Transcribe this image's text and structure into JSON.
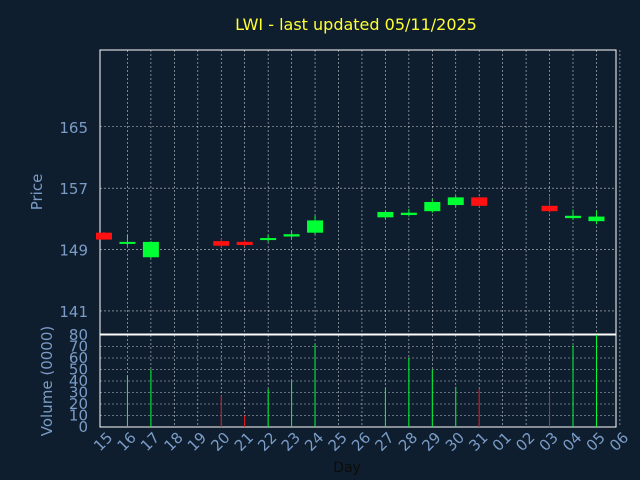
{
  "title": "LWI - last updated 05/11/2025",
  "price_axis_label": "Price",
  "volume_axis_label": "Volume (0000)",
  "x_axis_label": "Day",
  "colors": {
    "up": "#00ff33",
    "down": "#ff1111",
    "background": "#0f1e2e",
    "title": "#ffff33",
    "axis_text": "#7a9cc6"
  },
  "chart_data": [
    {
      "type": "candlestick",
      "ylabel": "Price",
      "ylim": [
        138,
        175
      ],
      "yticks": [
        "141",
        "149",
        "157",
        "165"
      ],
      "xticks": [
        "15",
        "16",
        "17",
        "18",
        "19",
        "20",
        "21",
        "22",
        "23",
        "24",
        "25",
        "26",
        "27",
        "28",
        "29",
        "30",
        "31",
        "01",
        "02",
        "03",
        "04",
        "05",
        "06"
      ],
      "candles": [
        {
          "day": "15",
          "open": 151.2,
          "high": 151.3,
          "low": 150.3,
          "close": 150.3
        },
        {
          "day": "16",
          "open": 149.8,
          "high": 150.9,
          "low": 149.5,
          "close": 150.0
        },
        {
          "day": "17",
          "open": 148.0,
          "high": 150.1,
          "low": 147.9,
          "close": 150.0
        },
        {
          "day": "20",
          "open": 150.1,
          "high": 150.4,
          "low": 149.3,
          "close": 149.5
        },
        {
          "day": "21",
          "open": 150.0,
          "high": 150.2,
          "low": 149.4,
          "close": 149.6
        },
        {
          "day": "22",
          "open": 150.3,
          "high": 150.9,
          "low": 150.0,
          "close": 150.5
        },
        {
          "day": "23",
          "open": 150.7,
          "high": 151.4,
          "low": 150.5,
          "close": 151.0
        },
        {
          "day": "24",
          "open": 151.2,
          "high": 153.4,
          "low": 151.0,
          "close": 152.8
        },
        {
          "day": "27",
          "open": 153.2,
          "high": 154.0,
          "low": 153.0,
          "close": 153.9
        },
        {
          "day": "28",
          "open": 153.5,
          "high": 154.3,
          "low": 153.3,
          "close": 153.8
        },
        {
          "day": "29",
          "open": 154.0,
          "high": 155.6,
          "low": 153.8,
          "close": 155.2
        },
        {
          "day": "30",
          "open": 154.8,
          "high": 156.0,
          "low": 154.6,
          "close": 155.8
        },
        {
          "day": "31",
          "open": 155.8,
          "high": 155.9,
          "low": 154.6,
          "close": 154.7
        },
        {
          "day": "03",
          "open": 154.7,
          "high": 155.9,
          "low": 153.8,
          "close": 154.0
        },
        {
          "day": "04",
          "open": 153.1,
          "high": 154.2,
          "low": 152.9,
          "close": 153.4
        },
        {
          "day": "05",
          "open": 152.7,
          "high": 154.1,
          "low": 152.3,
          "close": 153.3
        }
      ]
    },
    {
      "type": "bar",
      "ylabel": "Volume (0000)",
      "ylim": [
        0,
        80
      ],
      "yticks": [
        "0",
        "10",
        "20",
        "30",
        "40",
        "50",
        "60",
        "70",
        "80"
      ],
      "xlabel": "Day",
      "bars": [
        {
          "day": "16",
          "value": 45,
          "direction": "up"
        },
        {
          "day": "17",
          "value": 50,
          "direction": "up"
        },
        {
          "day": "20",
          "value": 27,
          "direction": "down"
        },
        {
          "day": "21",
          "value": 10,
          "direction": "down"
        },
        {
          "day": "22",
          "value": 33,
          "direction": "up"
        },
        {
          "day": "23",
          "value": 40,
          "direction": "up"
        },
        {
          "day": "24",
          "value": 72,
          "direction": "up"
        },
        {
          "day": "27",
          "value": 34,
          "direction": "up"
        },
        {
          "day": "28",
          "value": 60,
          "direction": "up"
        },
        {
          "day": "29",
          "value": 50,
          "direction": "up"
        },
        {
          "day": "30",
          "value": 35,
          "direction": "up"
        },
        {
          "day": "31",
          "value": 33,
          "direction": "down"
        },
        {
          "day": "03",
          "value": 30,
          "direction": "down"
        },
        {
          "day": "04",
          "value": 71,
          "direction": "up"
        },
        {
          "day": "05",
          "value": 80,
          "direction": "up"
        }
      ]
    }
  ]
}
